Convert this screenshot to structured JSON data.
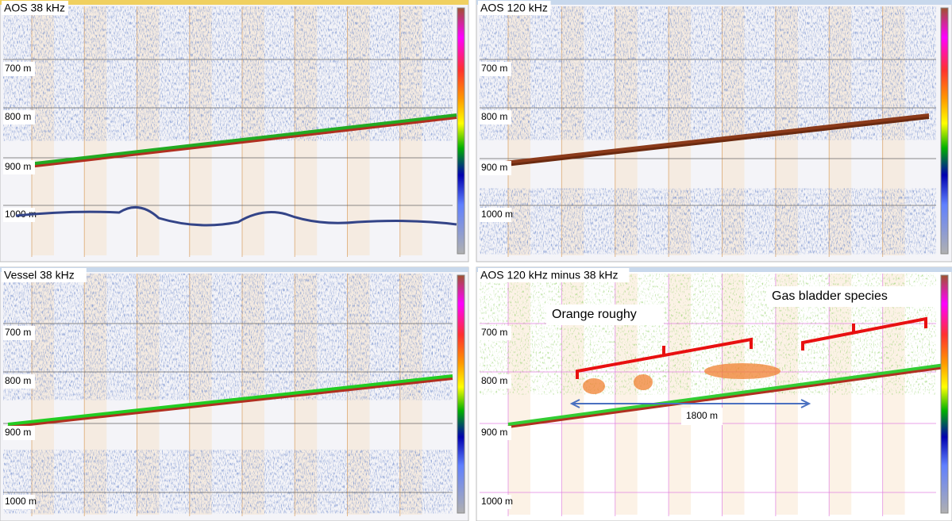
{
  "panels": [
    {
      "title": "AOS 38 kHz",
      "depth_labels": [
        "700 m",
        "800 m",
        "900 m",
        "1000 m"
      ]
    },
    {
      "title": "AOS 120 kHz",
      "depth_labels": [
        "700 m",
        "800 m",
        "900 m",
        "1000 m"
      ]
    },
    {
      "title": "Vessel 38 kHz",
      "depth_labels": [
        "700 m",
        "800 m",
        "900 m",
        "1000 m"
      ]
    },
    {
      "title": "AOS 120 kHz minus 38 kHz",
      "depth_labels": [
        "700 m",
        "800 m",
        "900 m",
        "1000 m"
      ]
    }
  ],
  "annotations": {
    "orange_roughy": "Orange roughy",
    "gas_bladder": "Gas bladder species",
    "distance": "1800 m"
  }
}
